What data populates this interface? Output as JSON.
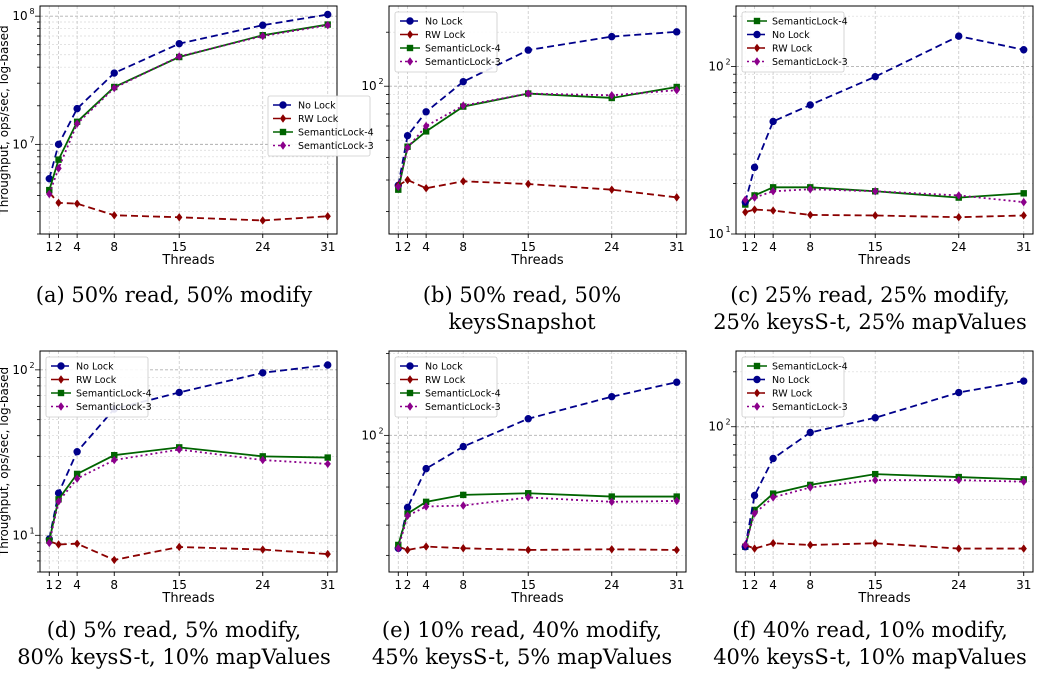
{
  "figure": {
    "xlabel": "Threads",
    "ylabel": "Throughput, ops/sec, log-based",
    "xticks": [
      1,
      2,
      4,
      8,
      15,
      24,
      31
    ],
    "colors": {
      "No Lock": "#00008b",
      "RW Lock": "#8b0000",
      "SemanticLock-4": "#006400",
      "SemanticLock-3": "#8b008b"
    },
    "markers": {
      "No Lock": "circle",
      "RW Lock": "diamond",
      "SemanticLock-4": "square",
      "SemanticLock-3": "diamond"
    }
  },
  "chart_data": [
    {
      "type": "line",
      "caption": [
        "(a) 50% read, 50% modify"
      ],
      "xlabel": "Threads",
      "ylabel": "Throughput, ops/sec, log-based",
      "yscale": "log",
      "ylim": [
        2000000,
        120000000
      ],
      "grid": true,
      "legend_position": "center-right",
      "yticks": [
        {
          "v": 10000000,
          "t": "10",
          "e": "7"
        },
        {
          "v": 100000000,
          "t": "10",
          "e": "8"
        }
      ],
      "x": [
        1,
        2,
        4,
        8,
        15,
        24,
        31
      ],
      "series": [
        {
          "name": "No Lock",
          "values": [
            5400000,
            10000000,
            19000000,
            36000000,
            61000000,
            85000000,
            103000000
          ]
        },
        {
          "name": "RW Lock",
          "values": [
            4200000,
            3500000,
            3450000,
            2800000,
            2700000,
            2550000,
            2750000
          ]
        },
        {
          "name": "SemanticLock-4",
          "values": [
            4400000,
            7600000,
            15000000,
            28000000,
            48000000,
            71000000,
            86000000
          ]
        },
        {
          "name": "SemanticLock-3",
          "values": [
            4100000,
            6500000,
            14500000,
            27500000,
            48500000,
            70000000,
            85000000
          ]
        }
      ]
    },
    {
      "type": "line",
      "caption": [
        "(b) 50% read, 50%",
        "keysSnapshot"
      ],
      "xlabel": "Threads",
      "ylabel": "",
      "yscale": "log",
      "ylim": [
        15,
        280
      ],
      "grid": true,
      "legend_position": "top-left",
      "yticks": [
        {
          "v": 100,
          "t": "10",
          "e": "2"
        }
      ],
      "x": [
        1,
        2,
        4,
        8,
        15,
        24,
        31
      ],
      "series": [
        {
          "name": "No Lock",
          "values": [
            28,
            53,
            72,
            106,
            159,
            189,
            201
          ]
        },
        {
          "name": "RW Lock",
          "values": [
            28,
            30,
            27,
            29.5,
            28.5,
            26.5,
            24
          ]
        },
        {
          "name": "SemanticLock-4",
          "values": [
            26.5,
            46,
            56,
            77,
            91,
            86,
            99
          ]
        },
        {
          "name": "SemanticLock-3",
          "values": [
            27.5,
            45.5,
            60,
            78,
            91,
            89,
            95
          ]
        }
      ]
    },
    {
      "type": "line",
      "caption": [
        "(c) 25% read, 25% modify,",
        "25% keysS-t, 25% mapValues"
      ],
      "xlabel": "Threads",
      "ylabel": "",
      "yscale": "log",
      "ylim": [
        10,
        230
      ],
      "grid": true,
      "legend_position": "top-left",
      "yticks": [
        {
          "v": 10,
          "t": "10",
          "e": "1"
        },
        {
          "v": 100,
          "t": "10",
          "e": "2"
        }
      ],
      "x": [
        1,
        2,
        4,
        8,
        15,
        24,
        31
      ],
      "series": [
        {
          "name": "SemanticLock-4",
          "values": [
            15,
            17,
            19,
            19,
            18,
            16.5,
            17.5
          ]
        },
        {
          "name": "No Lock",
          "values": [
            15.5,
            25,
            47,
            59,
            87,
            152,
            126
          ]
        },
        {
          "name": "RW Lock",
          "values": [
            13.5,
            14,
            13.8,
            13,
            12.9,
            12.6,
            12.9
          ]
        },
        {
          "name": "SemanticLock-3",
          "values": [
            16,
            16.5,
            18,
            18.5,
            18,
            17,
            15.5
          ]
        }
      ]
    },
    {
      "type": "line",
      "caption": [
        "(d) 5% read, 5% modify,",
        "80% keysS-t, 10% mapValues"
      ],
      "xlabel": "Threads",
      "ylabel": "Throughput, ops/sec, log-based",
      "yscale": "log",
      "ylim": [
        6,
        130
      ],
      "grid": true,
      "legend_position": "top-left",
      "yticks": [
        {
          "v": 10,
          "t": "10",
          "e": "1"
        },
        {
          "v": 100,
          "t": "10",
          "e": "2"
        }
      ],
      "x": [
        1,
        2,
        4,
        8,
        15,
        24,
        31
      ],
      "series": [
        {
          "name": "No Lock",
          "values": [
            9.5,
            18,
            32,
            58,
            73,
            96,
            107
          ]
        },
        {
          "name": "RW Lock",
          "values": [
            9.2,
            8.8,
            8.9,
            7.1,
            8.5,
            8.2,
            7.7
          ]
        },
        {
          "name": "SemanticLock-4",
          "values": [
            9.3,
            16.5,
            23.5,
            30.5,
            34,
            30,
            29.5
          ]
        },
        {
          "name": "SemanticLock-3",
          "values": [
            9,
            16,
            22,
            28.5,
            33,
            28.5,
            27
          ]
        }
      ]
    },
    {
      "type": "line",
      "caption": [
        "(e) 10% read, 40% modify,",
        "45% keysS-t, 5% mapValues"
      ],
      "xlabel": "Threads",
      "ylabel": "",
      "yscale": "log",
      "ylim": [
        16,
        310
      ],
      "grid": true,
      "legend_position": "top-left",
      "yticks": [
        {
          "v": 100,
          "t": "10",
          "e": "2"
        }
      ],
      "x": [
        1,
        2,
        4,
        8,
        15,
        24,
        31
      ],
      "series": [
        {
          "name": "No Lock",
          "values": [
            22,
            38,
            64,
            86,
            125,
            168,
            204
          ]
        },
        {
          "name": "RW Lock",
          "values": [
            22.5,
            21.5,
            22.5,
            22,
            21.5,
            21.7,
            21.5
          ]
        },
        {
          "name": "SemanticLock-4",
          "values": [
            23,
            35,
            41,
            45,
            46,
            44,
            44
          ]
        },
        {
          "name": "SemanticLock-3",
          "values": [
            22,
            34,
            38.5,
            39,
            43.5,
            41,
            41.5
          ]
        }
      ]
    },
    {
      "type": "line",
      "caption": [
        "(f) 40% read, 10% modify,",
        "40% keysS-t, 10% mapValues"
      ],
      "xlabel": "Threads",
      "ylabel": "",
      "yscale": "log",
      "ylim": [
        16,
        260
      ],
      "grid": true,
      "legend_position": "top-left",
      "yticks": [
        {
          "v": 100,
          "t": "10",
          "e": "2"
        }
      ],
      "x": [
        1,
        2,
        4,
        8,
        15,
        24,
        31
      ],
      "series": [
        {
          "name": "SemanticLock-4",
          "values": [
            22,
            35,
            43,
            48,
            55,
            53,
            51.5
          ]
        },
        {
          "name": "No Lock",
          "values": [
            22,
            42,
            67,
            93,
            112,
            154,
            178
          ]
        },
        {
          "name": "RW Lock",
          "values": [
            22.5,
            21.5,
            23,
            22.5,
            23,
            21.5,
            21.5
          ]
        },
        {
          "name": "SemanticLock-3",
          "values": [
            22.5,
            33.5,
            41,
            46.5,
            51,
            51,
            50
          ]
        }
      ]
    }
  ]
}
